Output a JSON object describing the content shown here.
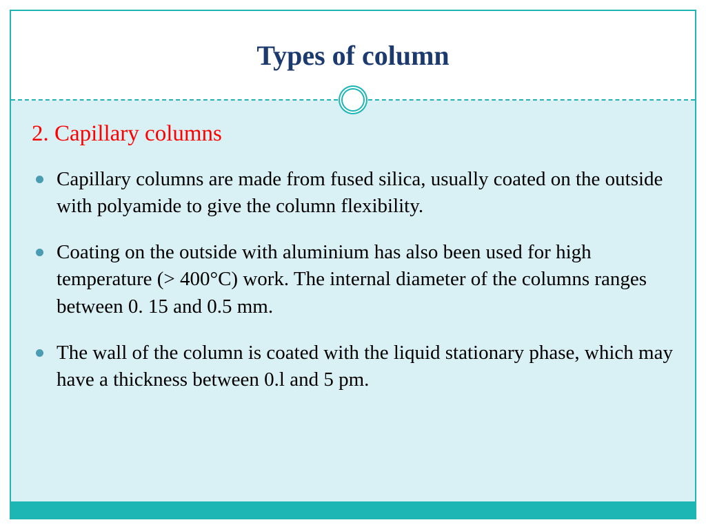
{
  "slide": {
    "title": "Types of column",
    "subtitle": "2. Capillary columns",
    "bullets": [
      "Capillary columns are made from fused silica, usually coated on the outside with polyamide to give the column flexibility.",
      "Coating on the outside with aluminium has also been used for high temperature (> 400°C) work. The internal diameter of the columns ranges between 0. 15 and 0.5 mm.",
      "The wall of the column is coated with the liquid stationary phase, which may have a thickness between 0.l and 5 pm."
    ],
    "colors": {
      "frame": "#1eb5b5",
      "title": "#1c3a6e",
      "subtitle": "#ff0000",
      "body_bg": "#d9f0f4",
      "bullet_dot": "#4a9cb3",
      "bottom_bar": "#1eb5b5"
    },
    "title_fontsize": 40,
    "subtitle_fontsize": 33,
    "body_fontsize": 29
  }
}
